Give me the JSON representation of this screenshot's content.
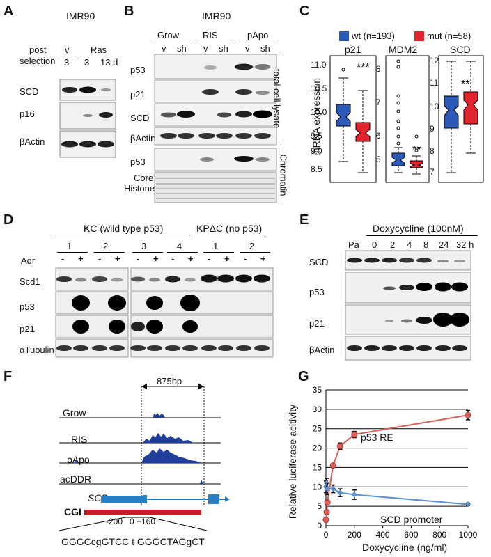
{
  "colors": {
    "wt": "#2d59b8",
    "mut": "#e0252e",
    "p53re": "#d9605a",
    "scdprom": "#5b8fd0",
    "track": "#1f3f9a",
    "cgi": "#c41e2a",
    "scdgene": "#2a7fc2"
  },
  "panelA": {
    "label": "A",
    "cell": "IMR90",
    "post": "post",
    "selection": "selection",
    "v": "v",
    "ras": "Ras",
    "lanes": [
      "3",
      "3",
      "13 d"
    ],
    "rows": [
      "SCD",
      "p16",
      "βActin"
    ]
  },
  "panelB": {
    "label": "B",
    "cell": "IMR90",
    "groups": [
      "Grow",
      "RIS",
      "pApo"
    ],
    "sub": [
      "v",
      "sh",
      "v",
      "sh",
      "v",
      "sh"
    ],
    "rows": [
      "p53",
      "p21",
      "SCD",
      "βActin"
    ],
    "chrom_rows": [
      "p53",
      "Core",
      "Histones"
    ],
    "side1": "total cell lysate",
    "side2": "Chromatin"
  },
  "panelC": {
    "label": "C",
    "legend_wt": "wt (n=193)",
    "legend_mut": "mut (n=58)",
    "ylabel": "mRNA expression",
    "plots": [
      {
        "title": "p21",
        "ticks": [
          "11.0",
          "10.5",
          "10.0",
          "9.5",
          "9.0",
          "8.5"
        ],
        "stars": "***"
      },
      {
        "title": "MDM2",
        "ticks": [
          "8",
          "7",
          "6",
          "5"
        ],
        "stars": "**"
      },
      {
        "title": "SCD",
        "ticks": [
          "12",
          "11",
          "10",
          "9",
          "8",
          "7"
        ],
        "stars": "**"
      }
    ]
  },
  "panelD": {
    "label": "D",
    "kc": "KC (wild type p53)",
    "kp": "KPΔC (no p53)",
    "nums": [
      "1",
      "2",
      "3",
      "4",
      "1",
      "2"
    ],
    "adr": "Adr",
    "signs": [
      "-",
      "+",
      "-",
      "+",
      "-",
      "+",
      "-",
      "+",
      "-",
      "+",
      "-",
      "+"
    ],
    "rows": [
      "Scd1",
      "p53",
      "p21",
      "αTubulin"
    ]
  },
  "panelE": {
    "label": "E",
    "title": "Doxycycline (100nM)",
    "lanes": [
      "Pa",
      "0",
      "2",
      "4",
      "8",
      "24",
      "32 h"
    ],
    "rows": [
      "SCD",
      "p53",
      "p21",
      "βActin"
    ]
  },
  "panelF": {
    "label": "F",
    "size": "875bp",
    "tracks": [
      "Grow",
      "RIS",
      "pApo",
      "acDDR"
    ],
    "gene": "SCD",
    "cgi": "CGI",
    "pos": [
      "-200",
      "0",
      "+160"
    ],
    "seq": "GGGCcgGTCC t GGGCTAGgCT"
  },
  "panelG": {
    "label": "G"
  },
  "chart_data": {
    "type": "line",
    "ylabel": "Relative luciferase acitivity",
    "xlabel": "Doxycycline (ng/ml)",
    "xlim": [
      0,
      1000
    ],
    "ylim": [
      0,
      35
    ],
    "xticks": [
      0,
      200,
      400,
      600,
      800,
      1000
    ],
    "yticks": [
      0,
      5,
      10,
      15,
      20,
      25,
      30,
      35
    ],
    "grid": "horizontal",
    "series": [
      {
        "name": "p53 RE",
        "x": [
          0,
          5,
          10,
          50,
          100,
          200,
          1000
        ],
        "y": [
          1.5,
          3.5,
          6.0,
          15.5,
          20.5,
          23.5,
          28.5
        ],
        "err": [
          0.5,
          0.5,
          0.6,
          0.5,
          0.8,
          0.8,
          1.2
        ]
      },
      {
        "name": "SCD promoter",
        "x": [
          0,
          5,
          10,
          50,
          100,
          200,
          1000
        ],
        "y": [
          10.0,
          11.0,
          9.5,
          9.5,
          8.5,
          8.0,
          5.5
        ],
        "err": [
          1.5,
          1.2,
          1.5,
          1.0,
          1.0,
          1.2,
          0.3
        ]
      }
    ]
  }
}
